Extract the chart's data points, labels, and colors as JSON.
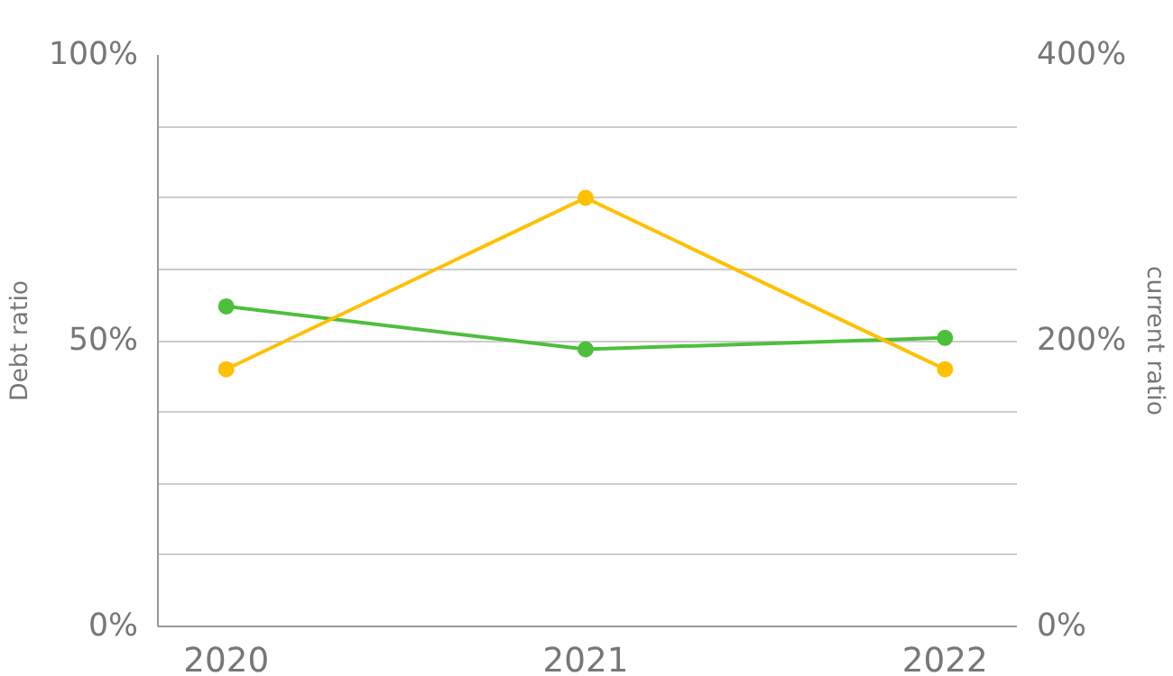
{
  "chart_data": {
    "type": "line",
    "ylabel": "Debt ratio",
    "y2label": "current ratio",
    "categories": [
      "2020",
      "2021",
      "2022"
    ],
    "series": [
      {
        "color": "#4dbf3c",
        "values": [
          56,
          48.5,
          50.5
        ]
      },
      {
        "color": "#ffc000",
        "values": [
          180,
          300,
          180
        ],
        "axis": "y2"
      }
    ],
    "ylim": [
      0,
      100
    ],
    "yticks": [
      {
        "value": 0,
        "label": "0%"
      },
      {
        "value": 12.5,
        "label": null
      },
      {
        "value": 25,
        "label": null
      },
      {
        "value": 37.5,
        "label": null
      },
      {
        "value": 50,
        "label": "50%"
      },
      {
        "value": 62.5,
        "label": null
      },
      {
        "value": 75,
        "label": null
      },
      {
        "value": 87.5,
        "label": null
      },
      {
        "value": 100,
        "label": "100%"
      }
    ],
    "y2lim": [
      0,
      400
    ],
    "y2ticks": [
      {
        "value": 0,
        "label": "0%"
      },
      {
        "value": 200,
        "label": "200%"
      },
      {
        "value": 400,
        "label": "400%"
      }
    ],
    "grid": "y",
    "marker": "circle",
    "line_style": "solid"
  }
}
